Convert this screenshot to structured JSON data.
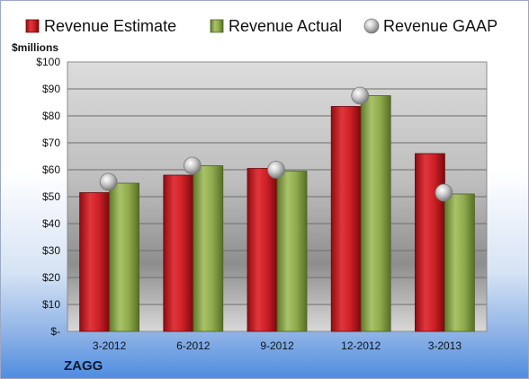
{
  "chart_data": {
    "type": "bar",
    "unit_label": "$millions",
    "company": "ZAGG",
    "categories": [
      "3-2012",
      "6-2012",
      "9-2012",
      "12-2012",
      "3-2013"
    ],
    "series": [
      {
        "name": "Revenue Estimate",
        "kind": "bar",
        "color": "#cc1f26",
        "values": [
          51.5,
          58,
          60.5,
          83.5,
          66
        ]
      },
      {
        "name": "Revenue Actual",
        "kind": "bar",
        "color": "#8faa4c",
        "values": [
          55,
          61.5,
          59.5,
          87.5,
          51
        ]
      },
      {
        "name": "Revenue GAAP",
        "kind": "marker",
        "color": "#c0c0c0",
        "values": [
          55.5,
          61.5,
          60,
          87.5,
          51.5
        ]
      }
    ],
    "ylim": [
      0,
      100
    ],
    "yticks": [
      0,
      10,
      20,
      30,
      40,
      50,
      60,
      70,
      80,
      90,
      100
    ],
    "ytick_labels": [
      "$-",
      "$10",
      "$20",
      "$30",
      "$40",
      "$50",
      "$60",
      "$70",
      "$80",
      "$90",
      "$100"
    ],
    "grid": true,
    "legend_position": "top"
  }
}
